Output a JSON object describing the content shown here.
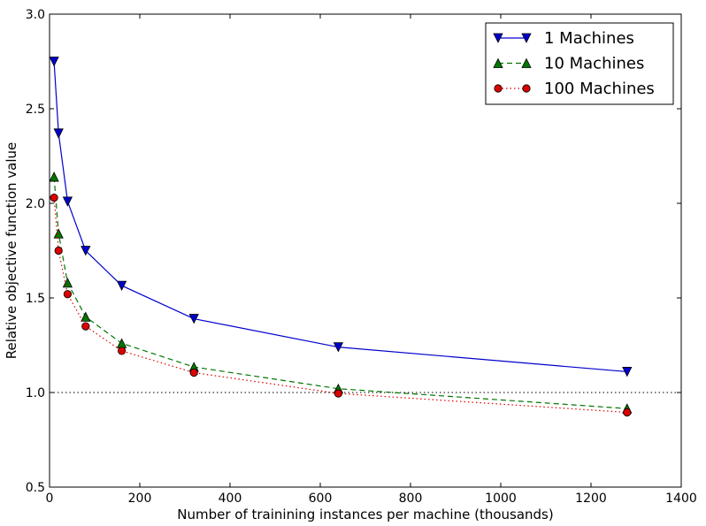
{
  "chart_data": {
    "type": "line",
    "title": "",
    "xlabel": "Number of trainining instances per machine (thousands)",
    "ylabel": "Relative objective function value",
    "xlim": [
      0,
      1400
    ],
    "ylim": [
      0.5,
      3.0
    ],
    "xticks": [
      0,
      200,
      400,
      600,
      800,
      1000,
      1200,
      1400
    ],
    "yticks": [
      0.5,
      1.0,
      1.5,
      2.0,
      2.5,
      3.0
    ],
    "xtick_labels": [
      "0",
      "200",
      "400",
      "600",
      "800",
      "1000",
      "1200",
      "1400"
    ],
    "ytick_labels": [
      "0.5",
      "1.0",
      "1.5",
      "2.0",
      "2.5",
      "3.0"
    ],
    "grid": false,
    "legend_position": "top-right",
    "reference_line": {
      "y": 1.0,
      "style": "dotted",
      "color": "#000000"
    },
    "series": [
      {
        "name": "1 Machines",
        "color": "#0000cc",
        "line_style": "solid",
        "marker": "triangle-down",
        "x": [
          10,
          20,
          40,
          80,
          160,
          320,
          640,
          1280
        ],
        "y": [
          2.75,
          2.37,
          2.01,
          1.75,
          1.565,
          1.39,
          1.24,
          1.11
        ]
      },
      {
        "name": "10 Machines",
        "color": "#007700",
        "line_style": "dashed",
        "marker": "triangle-up",
        "x": [
          10,
          20,
          40,
          80,
          160,
          320,
          640,
          1280
        ],
        "y": [
          2.14,
          1.84,
          1.58,
          1.4,
          1.26,
          1.135,
          1.02,
          0.915
        ]
      },
      {
        "name": "100 Machines",
        "color": "#dd0000",
        "line_style": "dotted",
        "marker": "circle",
        "x": [
          10,
          20,
          40,
          80,
          160,
          320,
          640,
          1280
        ],
        "y": [
          2.03,
          1.75,
          1.52,
          1.35,
          1.22,
          1.105,
          0.995,
          0.895
        ]
      }
    ]
  }
}
